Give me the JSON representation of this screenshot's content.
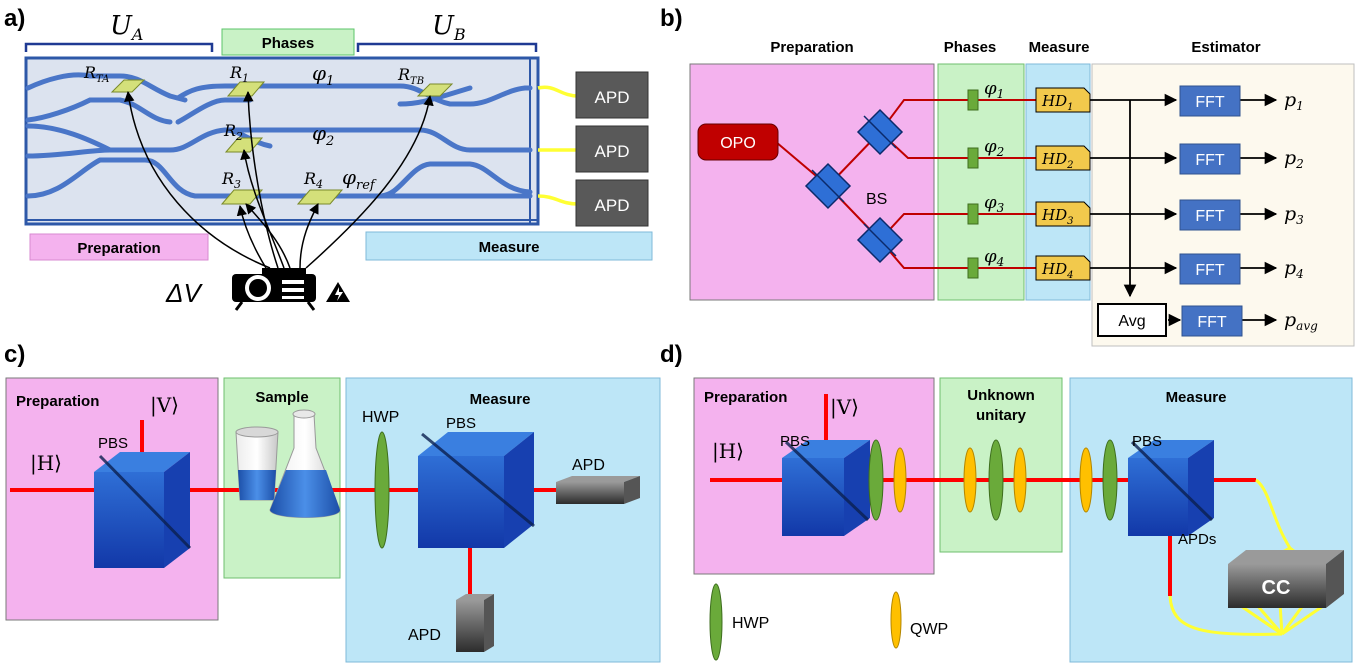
{
  "panel_a": {
    "letter": "a)",
    "ua_label": "U",
    "ua_sub": "A",
    "ub_label": "U",
    "ub_sub": "B",
    "phases_label": "Phases",
    "preparation_label": "Preparation",
    "measure_label": "Measure",
    "apd_labels": [
      "APD",
      "APD",
      "APD"
    ],
    "resistors": [
      {
        "main": "R",
        "sub": "TA"
      },
      {
        "main": "R",
        "sub": "1"
      },
      {
        "main": "R",
        "sub": "2"
      },
      {
        "main": "R",
        "sub": "3"
      },
      {
        "main": "R",
        "sub": "4"
      },
      {
        "main": "R",
        "sub": "TB"
      }
    ],
    "phi_labels": [
      {
        "main": "φ",
        "sub": "1"
      },
      {
        "main": "φ",
        "sub": "2"
      },
      {
        "main": "φ",
        "sub": "ref"
      }
    ],
    "voltage_label": "ΔV"
  },
  "panel_b": {
    "letter": "b)",
    "preparation_label": "Preparation",
    "phases_label": "Phases",
    "measure_label": "Measure",
    "estimator_label": "Estimator",
    "opo_label": "OPO",
    "bs_label": "BS",
    "phis": [
      {
        "main": "φ",
        "sub": "1"
      },
      {
        "main": "φ",
        "sub": "2"
      },
      {
        "main": "φ",
        "sub": "3"
      },
      {
        "main": "φ",
        "sub": "4"
      }
    ],
    "hd": [
      {
        "main": "HD",
        "sub": "1"
      },
      {
        "main": "HD",
        "sub": "2"
      },
      {
        "main": "HD",
        "sub": "3"
      },
      {
        "main": "HD",
        "sub": "4"
      }
    ],
    "fft_labels": [
      "FFT",
      "FFT",
      "FFT",
      "FFT",
      "FFT"
    ],
    "p_out": [
      {
        "main": "p",
        "sub": "1"
      },
      {
        "main": "p",
        "sub": "2"
      },
      {
        "main": "p",
        "sub": "3"
      },
      {
        "main": "p",
        "sub": "4"
      },
      {
        "main": "p",
        "sub": "avg"
      }
    ],
    "avg_label": "Avg"
  },
  "panel_c": {
    "letter": "c)",
    "preparation_label": "Preparation",
    "sample_label": "Sample",
    "measure_label": "Measure",
    "v_ket": "|V⟩",
    "h_ket": "|H⟩",
    "pbs_labels": [
      "PBS",
      "PBS"
    ],
    "hwp_label": "HWP",
    "apd_labels": [
      "APD",
      "APD"
    ]
  },
  "panel_d": {
    "letter": "d)",
    "preparation_label": "Preparation",
    "unitary_label_1": "Unknown",
    "unitary_label_2": "unitary",
    "measure_label": "Measure",
    "v_ket": "|V⟩",
    "h_ket": "|H⟩",
    "pbs_labels": [
      "PBS",
      "PBS"
    ],
    "apds_label": "APDs",
    "cc_label": "CC",
    "hwp_legend": "HWP",
    "qwp_legend": "QWP"
  },
  "colors": {
    "preparation": "#f4b2ee",
    "phases": "#c9f2c6",
    "measure": "#bde6f7",
    "estimator": "#fdf9ee",
    "chip": "#dce3ef",
    "waveguide": "#4472c4",
    "beam": "#e00000",
    "wire": "#c00000",
    "fft": "#4472c4",
    "hd": "#f2c94c",
    "hwp": "#6aaa3a",
    "qwp": "#ffc000",
    "fiber": "#ffff33",
    "opo": "#c00000"
  }
}
